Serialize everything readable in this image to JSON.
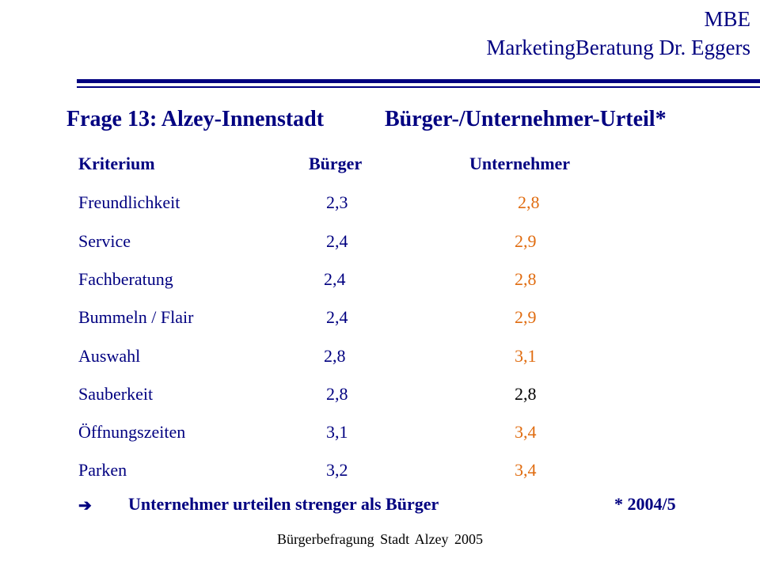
{
  "header": {
    "line1": "MBE",
    "line2": "MarketingBeratung Dr. Eggers"
  },
  "title": {
    "main": "Frage 13: Alzey-Innenstadt",
    "sub": "Bürger-/Unternehmer-Urteil*"
  },
  "table": {
    "headers": {
      "criterion": "Kriterium",
      "citizens": "Bürger",
      "entrepreneurs": "Unternehmer"
    },
    "rows": [
      {
        "criterion": "Freundlichkeit",
        "citizens": "2,3",
        "entrepreneurs": "2,8"
      },
      {
        "criterion": "Service",
        "citizens": "2,4",
        "entrepreneurs": "2,9"
      },
      {
        "criterion": "Fachberatung",
        "citizens": "2,4",
        "entrepreneurs": "2,8"
      },
      {
        "criterion": "Bummeln / Flair",
        "citizens": "2,4",
        "entrepreneurs": "2,9"
      },
      {
        "criterion": "Auswahl",
        "citizens": "2,8",
        "entrepreneurs": "3,1"
      },
      {
        "criterion": "Sauberkeit",
        "citizens": "2,8",
        "entrepreneurs": "2,8"
      },
      {
        "criterion": "Öffnungszeiten",
        "citizens": "3,1",
        "entrepreneurs": "3,4"
      },
      {
        "criterion": "Parken",
        "citizens": "3,2",
        "entrepreneurs": "3,4"
      }
    ]
  },
  "conclusion": {
    "arrow_icon": "right-arrow-icon",
    "text": "Unternehmer urteilen strenger als Bürger"
  },
  "footnote": "* 2004/5",
  "footer": "Bürgerbefragung Stadt Alzey 2005",
  "colors": {
    "primary": "#000080",
    "entrepreneur_value": "#e06c10",
    "equal_value": "#000000"
  }
}
